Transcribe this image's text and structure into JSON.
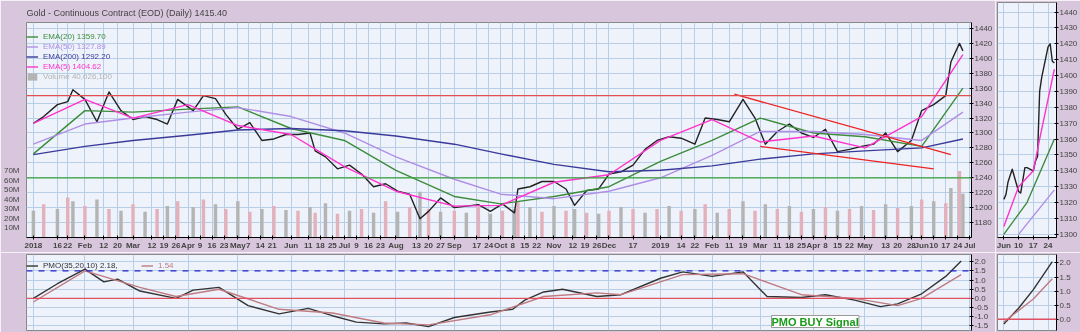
{
  "chart_data": [
    {
      "type": "line",
      "title": "Gold - Continuous Contract (EOD) (Daily) 1415.40",
      "legend": "top left",
      "grid": true,
      "xlim": [
        "2017-12-29",
        "2019-07-02"
      ],
      "ylim": [
        1160,
        1448
      ],
      "yticks": [
        1180,
        1200,
        1220,
        1240,
        1260,
        1280,
        1300,
        1320,
        1340,
        1360,
        1380,
        1400,
        1420,
        1440
      ],
      "y2lim": [
        0,
        226
      ],
      "y2ticks": [
        {
          "value": 10,
          "label": "10M"
        },
        {
          "value": 20,
          "label": "20M"
        },
        {
          "value": 30,
          "label": "30M"
        },
        {
          "value": 40,
          "label": "40M"
        },
        {
          "value": 50,
          "label": "50M"
        },
        {
          "value": 60,
          "label": "60M"
        },
        {
          "value": 70,
          "label": "70M"
        }
      ],
      "xticks": [
        {
          "value": "2018-01-02",
          "label": "2018"
        },
        {
          "value": "2018-01-16",
          "label": "16"
        },
        {
          "value": "2018-01-22",
          "label": "22"
        },
        {
          "value": "2018-02-01",
          "label": "Feb"
        },
        {
          "value": "2018-02-12",
          "label": "12"
        },
        {
          "value": "2018-02-20",
          "label": "20"
        },
        {
          "value": "2018-03-01",
          "label": "Mar"
        },
        {
          "value": "2018-03-12",
          "label": "12"
        },
        {
          "value": "2018-03-19",
          "label": "19"
        },
        {
          "value": "2018-03-26",
          "label": "26"
        },
        {
          "value": "2018-04-02",
          "label": "Apr"
        },
        {
          "value": "2018-04-09",
          "label": "9"
        },
        {
          "value": "2018-04-16",
          "label": "16"
        },
        {
          "value": "2018-04-23",
          "label": "23"
        },
        {
          "value": "2018-05-01",
          "label": "May"
        },
        {
          "value": "2018-05-07",
          "label": "7"
        },
        {
          "value": "2018-05-14",
          "label": "14"
        },
        {
          "value": "2018-05-21",
          "label": "21"
        },
        {
          "value": "2018-06-01",
          "label": "Jun"
        },
        {
          "value": "2018-06-11",
          "label": "11"
        },
        {
          "value": "2018-06-18",
          "label": "18"
        },
        {
          "value": "2018-06-25",
          "label": "25"
        },
        {
          "value": "2018-07-02",
          "label": "Jul"
        },
        {
          "value": "2018-07-09",
          "label": "9"
        },
        {
          "value": "2018-07-16",
          "label": "16"
        },
        {
          "value": "2018-07-23",
          "label": "23"
        },
        {
          "value": "2018-08-01",
          "label": "Aug"
        },
        {
          "value": "2018-08-13",
          "label": "13"
        },
        {
          "value": "2018-08-20",
          "label": "20"
        },
        {
          "value": "2018-08-27",
          "label": "27"
        },
        {
          "value": "2018-09-04",
          "label": "Sep"
        },
        {
          "value": "2018-09-17",
          "label": "17"
        },
        {
          "value": "2018-09-24",
          "label": "24"
        },
        {
          "value": "2018-10-01",
          "label": "Oct"
        },
        {
          "value": "2018-10-08",
          "label": "8"
        },
        {
          "value": "2018-10-15",
          "label": "15"
        },
        {
          "value": "2018-10-22",
          "label": "22"
        },
        {
          "value": "2018-11-01",
          "label": "Nov"
        },
        {
          "value": "2018-11-12",
          "label": "12"
        },
        {
          "value": "2018-11-19",
          "label": "19"
        },
        {
          "value": "2018-11-26",
          "label": "26"
        },
        {
          "value": "2018-12-03",
          "label": "Dec"
        },
        {
          "value": "2018-12-17",
          "label": "17"
        },
        {
          "value": "2019-01-02",
          "label": "2019"
        },
        {
          "value": "2019-01-14",
          "label": "14"
        },
        {
          "value": "2019-01-22",
          "label": "22"
        },
        {
          "value": "2019-02-01",
          "label": "Feb"
        },
        {
          "value": "2019-02-11",
          "label": "11"
        },
        {
          "value": "2019-02-19",
          "label": "19"
        },
        {
          "value": "2019-03-01",
          "label": "Mar"
        },
        {
          "value": "2019-03-11",
          "label": "11"
        },
        {
          "value": "2019-03-18",
          "label": "18"
        },
        {
          "value": "2019-03-25",
          "label": "25"
        },
        {
          "value": "2019-04-01",
          "label": "Apr"
        },
        {
          "value": "2019-04-08",
          "label": "8"
        },
        {
          "value": "2019-04-15",
          "label": "15"
        },
        {
          "value": "2019-04-22",
          "label": "22"
        },
        {
          "value": "2019-05-01",
          "label": "May"
        },
        {
          "value": "2019-05-13",
          "label": "13"
        },
        {
          "value": "2019-05-20",
          "label": "20"
        },
        {
          "value": "2019-05-28",
          "label": "28"
        },
        {
          "value": "2019-06-03",
          "label": "Jun"
        },
        {
          "value": "2019-06-10",
          "label": "10"
        },
        {
          "value": "2019-06-17",
          "label": "17"
        },
        {
          "value": "2019-06-24",
          "label": "24"
        },
        {
          "value": "2019-07-01",
          "label": "Jul"
        }
      ],
      "ref_lines": [
        {
          "axis": "y",
          "value": 1350,
          "color": "#e05050"
        },
        {
          "axis": "y",
          "value": 1240,
          "color": "#3aa03a"
        }
      ],
      "series": [
        {
          "name": "Volume 40,026,100",
          "type": "bar",
          "axis": "y2",
          "x": [
            "2018-01-02",
            "2018-01-08",
            "2018-01-16",
            "2018-01-22",
            "2018-01-25",
            "2018-02-01",
            "2018-02-08",
            "2018-02-15",
            "2018-02-22",
            "2018-03-01",
            "2018-03-08",
            "2018-03-15",
            "2018-03-21",
            "2018-03-27",
            "2018-04-05",
            "2018-04-11",
            "2018-04-18",
            "2018-04-24",
            "2018-05-01",
            "2018-05-08",
            "2018-05-15",
            "2018-05-22",
            "2018-05-29",
            "2018-06-05",
            "2018-06-12",
            "2018-06-15",
            "2018-06-21",
            "2018-06-28",
            "2018-07-05",
            "2018-07-12",
            "2018-07-19",
            "2018-07-26",
            "2018-08-02",
            "2018-08-09",
            "2018-08-15",
            "2018-08-20",
            "2018-08-27",
            "2018-09-04",
            "2018-09-11",
            "2018-09-18",
            "2018-09-25",
            "2018-10-02",
            "2018-10-09",
            "2018-10-11",
            "2018-10-18",
            "2018-10-25",
            "2018-11-01",
            "2018-11-08",
            "2018-11-13",
            "2018-11-20",
            "2018-11-27",
            "2018-12-03",
            "2018-12-10",
            "2018-12-17",
            "2018-12-24",
            "2018-12-31",
            "2019-01-07",
            "2019-01-14",
            "2019-01-22",
            "2019-01-28",
            "2019-02-04",
            "2019-02-11",
            "2019-02-19",
            "2019-02-26",
            "2019-03-04",
            "2019-03-11",
            "2019-03-18",
            "2019-03-25",
            "2019-04-01",
            "2019-04-08",
            "2019-04-15",
            "2019-04-22",
            "2019-04-29",
            "2019-05-06",
            "2019-05-13",
            "2019-05-20",
            "2019-05-28",
            "2019-06-03",
            "2019-06-10",
            "2019-06-17",
            "2019-06-20",
            "2019-06-25",
            "2019-06-27"
          ],
          "values": [
            28,
            35,
            30,
            42,
            38,
            33,
            40,
            30,
            28,
            35,
            27,
            30,
            33,
            38,
            32,
            40,
            35,
            30,
            38,
            27,
            30,
            33,
            29,
            28,
            32,
            26,
            36,
            25,
            28,
            30,
            26,
            38,
            27,
            32,
            48,
            30,
            27,
            28,
            26,
            32,
            25,
            28,
            30,
            38,
            32,
            27,
            33,
            28,
            30,
            26,
            25,
            28,
            32,
            30,
            26,
            30,
            33,
            28,
            30,
            35,
            26,
            30,
            38,
            28,
            35,
            30,
            33,
            27,
            30,
            32,
            28,
            30,
            33,
            29,
            35,
            31,
            33,
            40,
            38,
            36,
            52,
            70,
            46
          ],
          "colors": [
            "#b4b4b4",
            "#e3b1bb",
            "#b4b4b4",
            "#e3b1bb",
            "#b4b4b4",
            "#e3b1bb",
            "#b4b4b4",
            "#e3b1bb",
            "#b4b4b4",
            "#e3b1bb",
            "#b4b4b4",
            "#e3b1bb",
            "#b4b4b4",
            "#e3b1bb",
            "#b4b4b4",
            "#e3b1bb",
            "#b4b4b4",
            "#e3b1bb",
            "#b4b4b4",
            "#e3b1bb",
            "#b4b4b4",
            "#e3b1bb",
            "#b4b4b4",
            "#e3b1bb",
            "#b4b4b4",
            "#e3b1bb",
            "#b4b4b4",
            "#e3b1bb",
            "#b4b4b4",
            "#e3b1bb",
            "#b4b4b4",
            "#e3b1bb",
            "#b4b4b4",
            "#e3b1bb",
            "#b4b4b4",
            "#e3b1bb",
            "#b4b4b4",
            "#e3b1bb",
            "#b4b4b4",
            "#e3b1bb",
            "#b4b4b4",
            "#e3b1bb",
            "#b4b4b4",
            "#e3b1bb",
            "#b4b4b4",
            "#e3b1bb",
            "#b4b4b4",
            "#e3b1bb",
            "#b4b4b4",
            "#e3b1bb",
            "#b4b4b4",
            "#e3b1bb",
            "#b4b4b4",
            "#e3b1bb",
            "#b4b4b4",
            "#e3b1bb",
            "#b4b4b4",
            "#e3b1bb",
            "#b4b4b4",
            "#e3b1bb",
            "#b4b4b4",
            "#e3b1bb",
            "#b4b4b4",
            "#e3b1bb",
            "#b4b4b4",
            "#e3b1bb",
            "#b4b4b4",
            "#e3b1bb",
            "#b4b4b4",
            "#e3b1bb",
            "#b4b4b4",
            "#e3b1bb",
            "#b4b4b4",
            "#e3b1bb",
            "#b4b4b4",
            "#e3b1bb",
            "#b4b4b4",
            "#e3b1bb",
            "#b4b4b4",
            "#e3b1bb",
            "#b4b4b4",
            "#e3b1bb",
            "#b4b4b4"
          ]
        },
        {
          "color": "#222222",
          "x": [
            "2018-01-02",
            "2018-01-08",
            "2018-01-16",
            "2018-01-22",
            "2018-01-25",
            "2018-02-01",
            "2018-02-08",
            "2018-02-15",
            "2018-02-22",
            "2018-03-01",
            "2018-03-08",
            "2018-03-15",
            "2018-03-21",
            "2018-03-27",
            "2018-04-05",
            "2018-04-11",
            "2018-04-18",
            "2018-04-24",
            "2018-05-01",
            "2018-05-08",
            "2018-05-15",
            "2018-05-22",
            "2018-05-29",
            "2018-06-05",
            "2018-06-12",
            "2018-06-15",
            "2018-06-21",
            "2018-06-28",
            "2018-07-05",
            "2018-07-12",
            "2018-07-19",
            "2018-07-26",
            "2018-08-02",
            "2018-08-09",
            "2018-08-15",
            "2018-08-20",
            "2018-08-27",
            "2018-09-04",
            "2018-09-11",
            "2018-09-18",
            "2018-09-25",
            "2018-10-02",
            "2018-10-09",
            "2018-10-11",
            "2018-10-18",
            "2018-10-25",
            "2018-11-01",
            "2018-11-08",
            "2018-11-13",
            "2018-11-20",
            "2018-11-27",
            "2018-12-03",
            "2018-12-10",
            "2018-12-17",
            "2018-12-24",
            "2018-12-31",
            "2019-01-07",
            "2019-01-14",
            "2019-01-22",
            "2019-01-28",
            "2019-02-04",
            "2019-02-11",
            "2019-02-19",
            "2019-02-26",
            "2019-03-04",
            "2019-03-11",
            "2019-03-18",
            "2019-03-25",
            "2019-04-01",
            "2019-04-08",
            "2019-04-15",
            "2019-04-22",
            "2019-04-29",
            "2019-05-06",
            "2019-05-13",
            "2019-05-20",
            "2019-05-28",
            "2019-06-03",
            "2019-06-10",
            "2019-06-17",
            "2019-06-20",
            "2019-06-25",
            "2019-06-27"
          ],
          "values": [
            1313,
            1322,
            1338,
            1342,
            1358,
            1345,
            1315,
            1355,
            1330,
            1318,
            1322,
            1318,
            1312,
            1345,
            1330,
            1350,
            1346,
            1325,
            1305,
            1314,
            1290,
            1292,
            1298,
            1298,
            1300,
            1276,
            1268,
            1252,
            1257,
            1245,
            1228,
            1232,
            1222,
            1218,
            1185,
            1195,
            1213,
            1200,
            1202,
            1204,
            1195,
            1205,
            1193,
            1225,
            1228,
            1235,
            1235,
            1225,
            1203,
            1223,
            1225,
            1245,
            1248,
            1257,
            1278,
            1290,
            1295,
            1293,
            1285,
            1320,
            1318,
            1315,
            1345,
            1320,
            1285,
            1302,
            1312,
            1300,
            1294,
            1305,
            1275,
            1278,
            1282,
            1285,
            1300,
            1275,
            1290,
            1330,
            1338,
            1350,
            1395,
            1420,
            1410
          ]
        },
        {
          "name": "EMA(20) 1359.70",
          "color": "#3c8c3c",
          "x": [
            "2018-01-02",
            "2018-02-01",
            "2018-03-01",
            "2018-04-02",
            "2018-05-01",
            "2018-06-01",
            "2018-07-02",
            "2018-08-01",
            "2018-09-04",
            "2018-10-01",
            "2018-11-01",
            "2018-12-03",
            "2019-01-02",
            "2019-02-01",
            "2019-03-01",
            "2019-04-01",
            "2019-05-01",
            "2019-06-03",
            "2019-06-27"
          ],
          "values": [
            1272,
            1330,
            1328,
            1332,
            1335,
            1306,
            1290,
            1250,
            1215,
            1205,
            1215,
            1228,
            1262,
            1290,
            1320,
            1300,
            1295,
            1282,
            1360
          ]
        },
        {
          "name": "EMA(50) 1327.89",
          "color": "#b08ee6",
          "x": [
            "2018-01-02",
            "2018-02-01",
            "2018-03-01",
            "2018-04-02",
            "2018-05-01",
            "2018-06-01",
            "2018-07-02",
            "2018-08-01",
            "2018-09-04",
            "2018-10-01",
            "2018-11-01",
            "2018-12-03",
            "2019-01-02",
            "2019-02-01",
            "2019-03-01",
            "2019-04-01",
            "2019-05-01",
            "2019-06-03",
            "2019-06-27"
          ],
          "values": [
            1285,
            1312,
            1320,
            1328,
            1334,
            1322,
            1300,
            1268,
            1238,
            1218,
            1212,
            1222,
            1240,
            1270,
            1302,
            1302,
            1298,
            1290,
            1328
          ]
        },
        {
          "name": "EMA(200) 1292.20",
          "color": "#3a3a9a",
          "x": [
            "2018-01-02",
            "2018-02-01",
            "2018-03-01",
            "2018-04-02",
            "2018-05-01",
            "2018-06-01",
            "2018-07-02",
            "2018-08-01",
            "2018-09-04",
            "2018-10-01",
            "2018-11-01",
            "2018-12-03",
            "2019-01-02",
            "2019-02-01",
            "2019-03-01",
            "2019-04-01",
            "2019-05-01",
            "2019-06-03",
            "2019-06-27"
          ],
          "values": [
            1271,
            1282,
            1290,
            1297,
            1304,
            1306,
            1303,
            1296,
            1285,
            1272,
            1258,
            1248,
            1250,
            1256,
            1265,
            1272,
            1276,
            1280,
            1292
          ]
        },
        {
          "name": "EMA(5) 1404.62",
          "color": "#ff33cc",
          "x": [
            "2018-01-02",
            "2018-02-01",
            "2018-03-01",
            "2018-04-02",
            "2018-05-01",
            "2018-06-01",
            "2018-07-02",
            "2018-08-01",
            "2018-09-04",
            "2018-10-01",
            "2018-11-01",
            "2018-12-03",
            "2019-01-02",
            "2019-02-01",
            "2019-03-01",
            "2019-04-01",
            "2019-05-01",
            "2019-06-03",
            "2019-06-27"
          ],
          "values": [
            1313,
            1345,
            1320,
            1338,
            1310,
            1298,
            1255,
            1222,
            1202,
            1203,
            1234,
            1244,
            1290,
            1318,
            1288,
            1296,
            1280,
            1322,
            1405
          ]
        },
        {
          "color": "#ee2222",
          "x": [
            "2019-02-14",
            "2019-06-20"
          ],
          "values": [
            1352,
            1271
          ]
        },
        {
          "color": "#ee2222",
          "x": [
            "2019-03-01",
            "2019-06-10"
          ],
          "values": [
            1282,
            1252
          ]
        }
      ]
    },
    {
      "type": "line",
      "legend": "top left",
      "grid": true,
      "tick_labels": "y",
      "xlim": [
        "2017-12-29",
        "2019-07-02"
      ],
      "ylim": [
        -1.76,
        2.4
      ],
      "xticks": [
        "2018-01-02",
        "2018-02-01",
        "2018-03-01",
        "2018-04-02",
        "2018-05-01",
        "2018-06-01",
        "2018-07-02",
        "2018-08-01",
        "2018-09-04",
        "2018-10-01",
        "2018-11-01",
        "2018-12-03",
        "2019-01-02",
        "2019-02-01",
        "2019-03-01",
        "2019-04-01",
        "2019-05-01",
        "2019-06-03",
        "2019-07-01"
      ],
      "yticks": [
        {
          "value": -1.5,
          "label": "-1.5"
        },
        {
          "value": -1,
          "label": "-1.0"
        },
        {
          "value": -0.5,
          "label": "-0.5"
        },
        {
          "value": 0,
          "label": "0.0"
        },
        {
          "value": 0.5,
          "label": "0.5"
        },
        {
          "value": 1,
          "label": "1.0"
        },
        {
          "value": 1.5,
          "label": "1.5"
        },
        {
          "value": 2,
          "label": "2.0"
        }
      ],
      "ref_lines": [
        {
          "axis": "y",
          "value": 0,
          "color": "#e05060"
        },
        {
          "axis": "y",
          "value": 1.5,
          "color": "#2020cc",
          "line_style": "dashed"
        }
      ],
      "annotations": [
        "PMO BUY Signal"
      ],
      "series": [
        {
          "name": "PMO(35,20,10) 2.18,",
          "color": "#333333",
          "x": [
            "2018-01-02",
            "2018-01-16",
            "2018-02-01",
            "2018-02-12",
            "2018-02-20",
            "2018-03-05",
            "2018-03-26",
            "2018-04-05",
            "2018-04-20",
            "2018-05-07",
            "2018-05-25",
            "2018-06-11",
            "2018-06-25",
            "2018-07-09",
            "2018-07-25",
            "2018-08-07",
            "2018-08-20",
            "2018-09-04",
            "2018-09-25",
            "2018-10-08",
            "2018-10-15",
            "2018-10-26",
            "2018-11-06",
            "2018-11-26",
            "2018-12-10",
            "2019-01-02",
            "2019-01-15",
            "2019-02-01",
            "2019-02-19",
            "2019-03-05",
            "2019-03-25",
            "2019-04-08",
            "2019-04-25",
            "2019-05-10",
            "2019-05-20",
            "2019-06-03",
            "2019-06-17",
            "2019-06-26"
          ],
          "values": [
            0.0,
            0.8,
            1.6,
            0.9,
            1.05,
            0.4,
            0.0,
            0.45,
            0.6,
            -0.4,
            -0.85,
            -0.55,
            -0.95,
            -1.3,
            -1.4,
            -1.35,
            -1.55,
            -1.05,
            -0.75,
            -0.6,
            -0.1,
            0.35,
            0.5,
            0.1,
            0.2,
            1.1,
            1.45,
            1.2,
            1.45,
            0.1,
            0.05,
            0.2,
            -0.1,
            -0.45,
            -0.3,
            0.25,
            1.2,
            2.05
          ]
        },
        {
          "name": "1.54",
          "color": "#c07a80",
          "x": [
            "2018-01-02",
            "2018-02-01",
            "2018-03-05",
            "2018-03-26",
            "2018-04-20",
            "2018-05-25",
            "2018-06-25",
            "2018-07-25",
            "2018-08-20",
            "2018-09-25",
            "2018-10-26",
            "2018-11-26",
            "2018-12-10",
            "2019-01-15",
            "2019-02-19",
            "2019-03-25",
            "2019-04-25",
            "2019-05-20",
            "2019-06-03",
            "2019-06-26"
          ],
          "values": [
            -0.2,
            1.5,
            0.6,
            0.1,
            0.5,
            -0.6,
            -0.8,
            -1.35,
            -1.45,
            -0.9,
            0.1,
            0.3,
            0.2,
            1.3,
            1.35,
            0.2,
            0.0,
            -0.4,
            0.0,
            1.3
          ]
        }
      ]
    },
    {
      "type": "line",
      "grid": true,
      "xlim": [
        "2019-05-31",
        "2019-06-28"
      ],
      "ylim": [
        1298,
        1446
      ],
      "xticks": [
        {
          "value": "2019-06-03",
          "label": "Jun"
        },
        {
          "value": "2019-06-10",
          "label": "10"
        },
        {
          "value": "2019-06-17",
          "label": "17"
        },
        {
          "value": "2019-06-24",
          "label": "24"
        }
      ],
      "yticks": [
        1300,
        1310,
        1320,
        1330,
        1340,
        1350,
        1360,
        1370,
        1380,
        1390,
        1400,
        1410,
        1420,
        1430,
        1440
      ],
      "series": [
        {
          "color": "#222222",
          "x": [
            "2019-06-03",
            "2019-06-04",
            "2019-06-05",
            "2019-06-06",
            "2019-06-07",
            "2019-06-10",
            "2019-06-11",
            "2019-06-12",
            "2019-06-13",
            "2019-06-14",
            "2019-06-17",
            "2019-06-18",
            "2019-06-19",
            "2019-06-20",
            "2019-06-21",
            "2019-06-24",
            "2019-06-25",
            "2019-06-26",
            "2019-06-27"
          ],
          "values": [
            1322,
            1325,
            1333,
            1337,
            1341,
            1327,
            1326,
            1334,
            1342,
            1342,
            1340,
            1346,
            1349,
            1390,
            1399,
            1418,
            1420,
            1409,
            1408
          ]
        },
        {
          "color": "#ff33cc",
          "x": [
            "2019-06-03",
            "2019-06-10",
            "2019-06-17",
            "2019-06-20",
            "2019-06-27"
          ],
          "values": [
            1305,
            1330,
            1340,
            1360,
            1404
          ]
        },
        {
          "color": "#3c8c3c",
          "x": [
            "2019-06-03",
            "2019-06-14",
            "2019-06-27"
          ],
          "values": [
            1300,
            1320,
            1360
          ]
        },
        {
          "color": "#b08ee6",
          "x": [
            "2019-06-10",
            "2019-06-27"
          ],
          "values": [
            1300,
            1328
          ]
        }
      ]
    },
    {
      "type": "line",
      "grid": true,
      "tick_labels": "y",
      "xlim": [
        "2019-05-31",
        "2019-06-28"
      ],
      "ylim": [
        -0.4,
        2.3
      ],
      "xticks": [
        "2019-06-03",
        "2019-06-10",
        "2019-06-17",
        "2019-06-24"
      ],
      "yticks": [
        {
          "value": 0,
          "label": "0.0"
        },
        {
          "value": 0.5,
          "label": "0.5"
        },
        {
          "value": 1,
          "label": "1.0"
        },
        {
          "value": 1.5,
          "label": "1.5"
        },
        {
          "value": 2,
          "label": "2.0"
        }
      ],
      "ref_lines": [
        {
          "axis": "y",
          "value": 0,
          "color": "#e05060"
        }
      ],
      "series": [
        {
          "color": "#333333",
          "x": [
            "2019-06-03",
            "2019-06-10",
            "2019-06-17",
            "2019-06-26"
          ],
          "values": [
            -0.17,
            0.39,
            1.05,
            2.05
          ]
        },
        {
          "color": "#c07a80",
          "x": [
            "2019-06-03",
            "2019-06-17",
            "2019-06-26"
          ],
          "values": [
            -0.1,
            0.72,
            1.44
          ]
        }
      ]
    }
  ]
}
